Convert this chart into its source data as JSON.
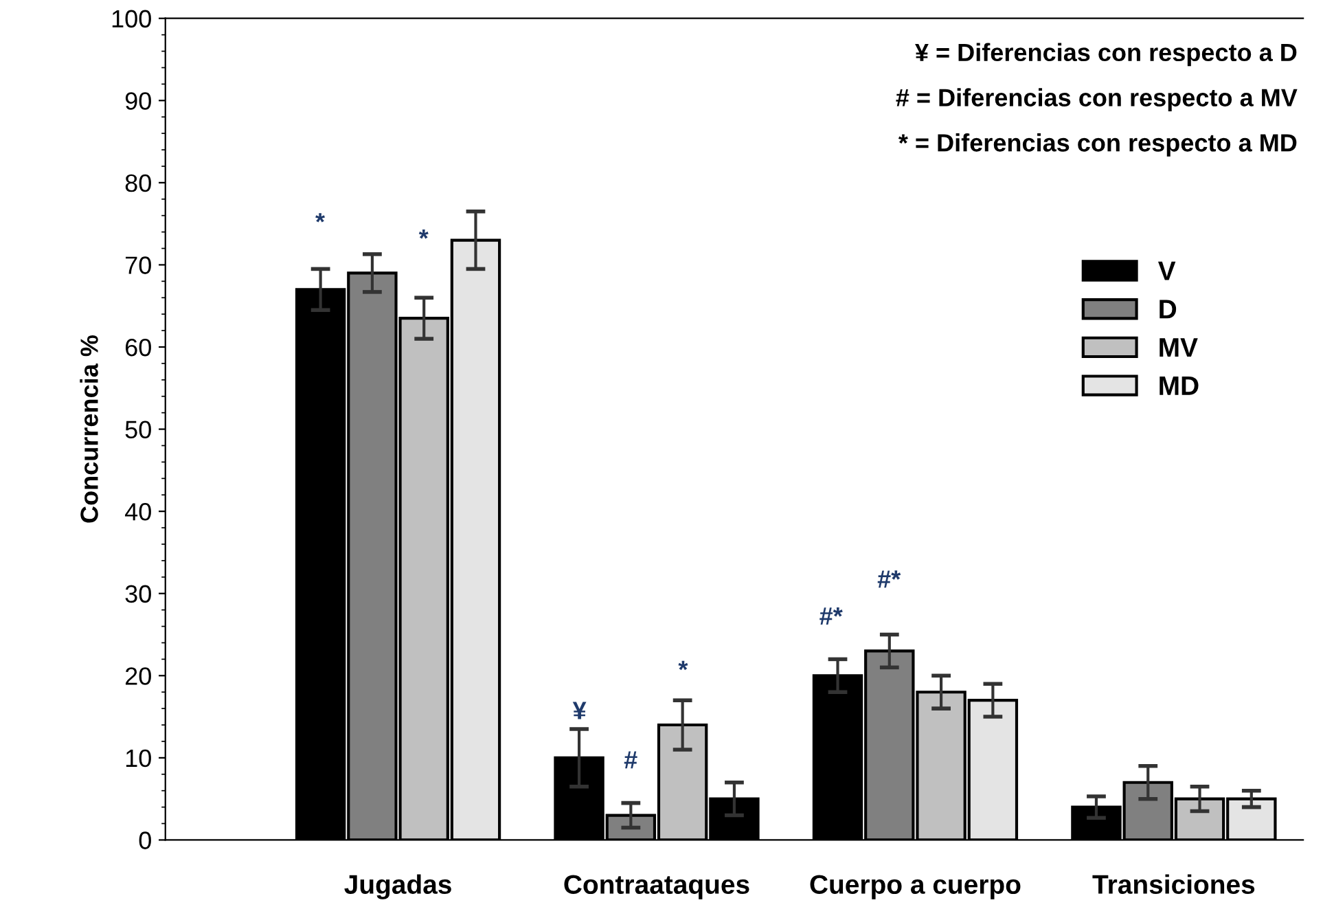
{
  "chart_data": {
    "type": "bar",
    "ylabel": "Concurrencia %",
    "categories": [
      "Jugadas",
      "Contraataques",
      "Cuerpo a cuerpo",
      "Transiciones"
    ],
    "series": [
      {
        "name": "V",
        "color": "#000000",
        "values": [
          67,
          10,
          20,
          4
        ],
        "errors": [
          2.5,
          3.5,
          2,
          1.3
        ]
      },
      {
        "name": "D",
        "color": "#808080",
        "values": [
          69,
          3,
          23,
          7
        ],
        "errors": [
          2.3,
          1.5,
          2,
          2
        ]
      },
      {
        "name": "MV",
        "color": "#c0c0c0",
        "values": [
          63.5,
          14,
          18,
          5
        ],
        "errors": [
          2.5,
          3,
          2,
          1.5
        ]
      },
      {
        "name": "MD",
        "color": "#e4e4e4",
        "colors": [
          "#e4e4e4",
          "#000000",
          "#e4e4e4",
          "#e4e4e4"
        ],
        "values": [
          73,
          5,
          17,
          5
        ],
        "errors": [
          3.5,
          2,
          2,
          1
        ]
      }
    ],
    "ylim": [
      0,
      100
    ],
    "yticks": [
      0,
      10,
      20,
      30,
      40,
      50,
      60,
      70,
      80,
      90,
      100
    ],
    "grid": false,
    "legend": "right",
    "annotations": [
      "¥ = Diferencias con respecto a D",
      "# = Diferencias con respecto a MV",
      "* = Diferencias con respecto a MD",
      "*",
      "*",
      "¥",
      "#",
      "*",
      "#*",
      "#*"
    ]
  }
}
